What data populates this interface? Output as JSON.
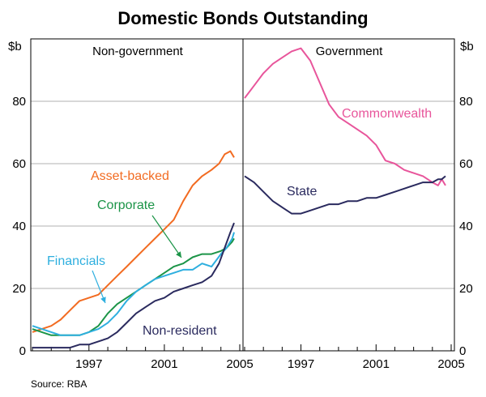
{
  "chart_data": {
    "type": "line",
    "title": "Domestic Bonds Outstanding",
    "source": "Source: RBA",
    "y_unit_left": "$b",
    "y_unit_right": "$b",
    "ylim": [
      0,
      100
    ],
    "yticks": [
      0,
      20,
      40,
      60,
      80
    ],
    "xlim": [
      1994,
      2005
    ],
    "xticks": [
      1997,
      2001,
      2005
    ],
    "grid": true,
    "panels": [
      {
        "title": "Non-government",
        "series": [
          {
            "name": "Asset-backed",
            "color": "#F26B21",
            "x": [
              1994.0,
              1994.5,
              1995.0,
              1995.5,
              1996.0,
              1996.5,
              1997.0,
              1997.5,
              1998.0,
              1998.5,
              1999.0,
              1999.5,
              2000.0,
              2000.5,
              2001.0,
              2001.5,
              2002.0,
              2002.5,
              2003.0,
              2003.5,
              2003.9,
              2004.2,
              2004.5,
              2004.7
            ],
            "values": [
              6,
              7,
              8,
              10,
              13,
              16,
              17,
              18,
              21,
              24,
              27,
              30,
              33,
              36,
              39,
              42,
              48,
              53,
              56,
              58,
              60,
              63,
              64,
              62
            ]
          },
          {
            "name": "Corporate",
            "color": "#1B9447",
            "x": [
              1994.0,
              1994.5,
              1995.0,
              1995.5,
              1996.0,
              1996.5,
              1997.0,
              1997.5,
              1998.0,
              1998.5,
              1999.0,
              1999.5,
              2000.0,
              2000.5,
              2001.0,
              2001.5,
              2002.0,
              2002.5,
              2003.0,
              2003.5,
              2004.0,
              2004.3,
              2004.6,
              2004.7
            ],
            "values": [
              7,
              6,
              5,
              5,
              5,
              5,
              6,
              8,
              12,
              15,
              17,
              19,
              21,
              23,
              25,
              27,
              28,
              30,
              31,
              31,
              32,
              33,
              35,
              36
            ]
          },
          {
            "name": "Financials",
            "color": "#2EAFDF",
            "x": [
              1994.0,
              1994.5,
              1995.0,
              1995.5,
              1996.0,
              1996.5,
              1997.0,
              1997.5,
              1998.0,
              1998.5,
              1999.0,
              1999.5,
              2000.0,
              2000.5,
              2001.0,
              2001.5,
              2002.0,
              2002.5,
              2003.0,
              2003.5,
              2004.0,
              2004.3,
              2004.6,
              2004.7
            ],
            "values": [
              8,
              7,
              6,
              5,
              5,
              5,
              6,
              7,
              9,
              12,
              16,
              19,
              21,
              23,
              24,
              25,
              26,
              26,
              28,
              27,
              31,
              33,
              36,
              38
            ]
          },
          {
            "name": "Non-resident",
            "color": "#2A2A5E",
            "x": [
              1994.0,
              1994.5,
              1995.0,
              1995.5,
              1996.0,
              1996.5,
              1997.0,
              1997.5,
              1998.0,
              1998.5,
              1999.0,
              1999.5,
              2000.0,
              2000.5,
              2001.0,
              2001.5,
              2002.0,
              2002.5,
              2003.0,
              2003.5,
              2003.9,
              2004.2,
              2004.5,
              2004.7
            ],
            "values": [
              1,
              1,
              1,
              1,
              1,
              2,
              2,
              3,
              4,
              6,
              9,
              12,
              14,
              16,
              17,
              19,
              20,
              21,
              22,
              24,
              28,
              33,
              38,
              41
            ]
          }
        ],
        "labels": [
          {
            "series": "Asset-backed",
            "text": "Asset-backed"
          },
          {
            "series": "Corporate",
            "text": "Corporate"
          },
          {
            "series": "Financials",
            "text": "Financials"
          },
          {
            "series": "Non-resident",
            "text": "Non-resident"
          }
        ]
      },
      {
        "title": "Government",
        "series": [
          {
            "name": "Commonwealth",
            "color": "#E8559B",
            "x": [
              1994.0,
              1994.5,
              1995.0,
              1995.5,
              1996.0,
              1996.5,
              1997.0,
              1997.5,
              1998.0,
              1998.5,
              1999.0,
              1999.5,
              2000.0,
              2000.5,
              2001.0,
              2001.5,
              2002.0,
              2002.5,
              2003.0,
              2003.5,
              2004.0,
              2004.3,
              2004.5,
              2004.7
            ],
            "values": [
              81,
              85,
              89,
              92,
              94,
              96,
              97,
              93,
              86,
              79,
              75,
              73,
              71,
              69,
              66,
              61,
              60,
              58,
              57,
              56,
              54,
              53,
              55,
              53
            ]
          },
          {
            "name": "State",
            "color": "#2A2A5E",
            "x": [
              1994.0,
              1994.5,
              1995.0,
              1995.5,
              1996.0,
              1996.5,
              1997.0,
              1997.5,
              1998.0,
              1998.5,
              1999.0,
              1999.5,
              2000.0,
              2000.5,
              2001.0,
              2001.5,
              2002.0,
              2002.5,
              2003.0,
              2003.5,
              2004.0,
              2004.3,
              2004.5,
              2004.7
            ],
            "values": [
              56,
              54,
              51,
              48,
              46,
              44,
              44,
              45,
              46,
              47,
              47,
              48,
              48,
              49,
              49,
              50,
              51,
              52,
              53,
              54,
              54,
              55,
              55,
              56
            ]
          }
        ],
        "labels": [
          {
            "series": "Commonwealth",
            "text": "Commonwealth"
          },
          {
            "series": "State",
            "text": "State"
          }
        ]
      }
    ]
  }
}
